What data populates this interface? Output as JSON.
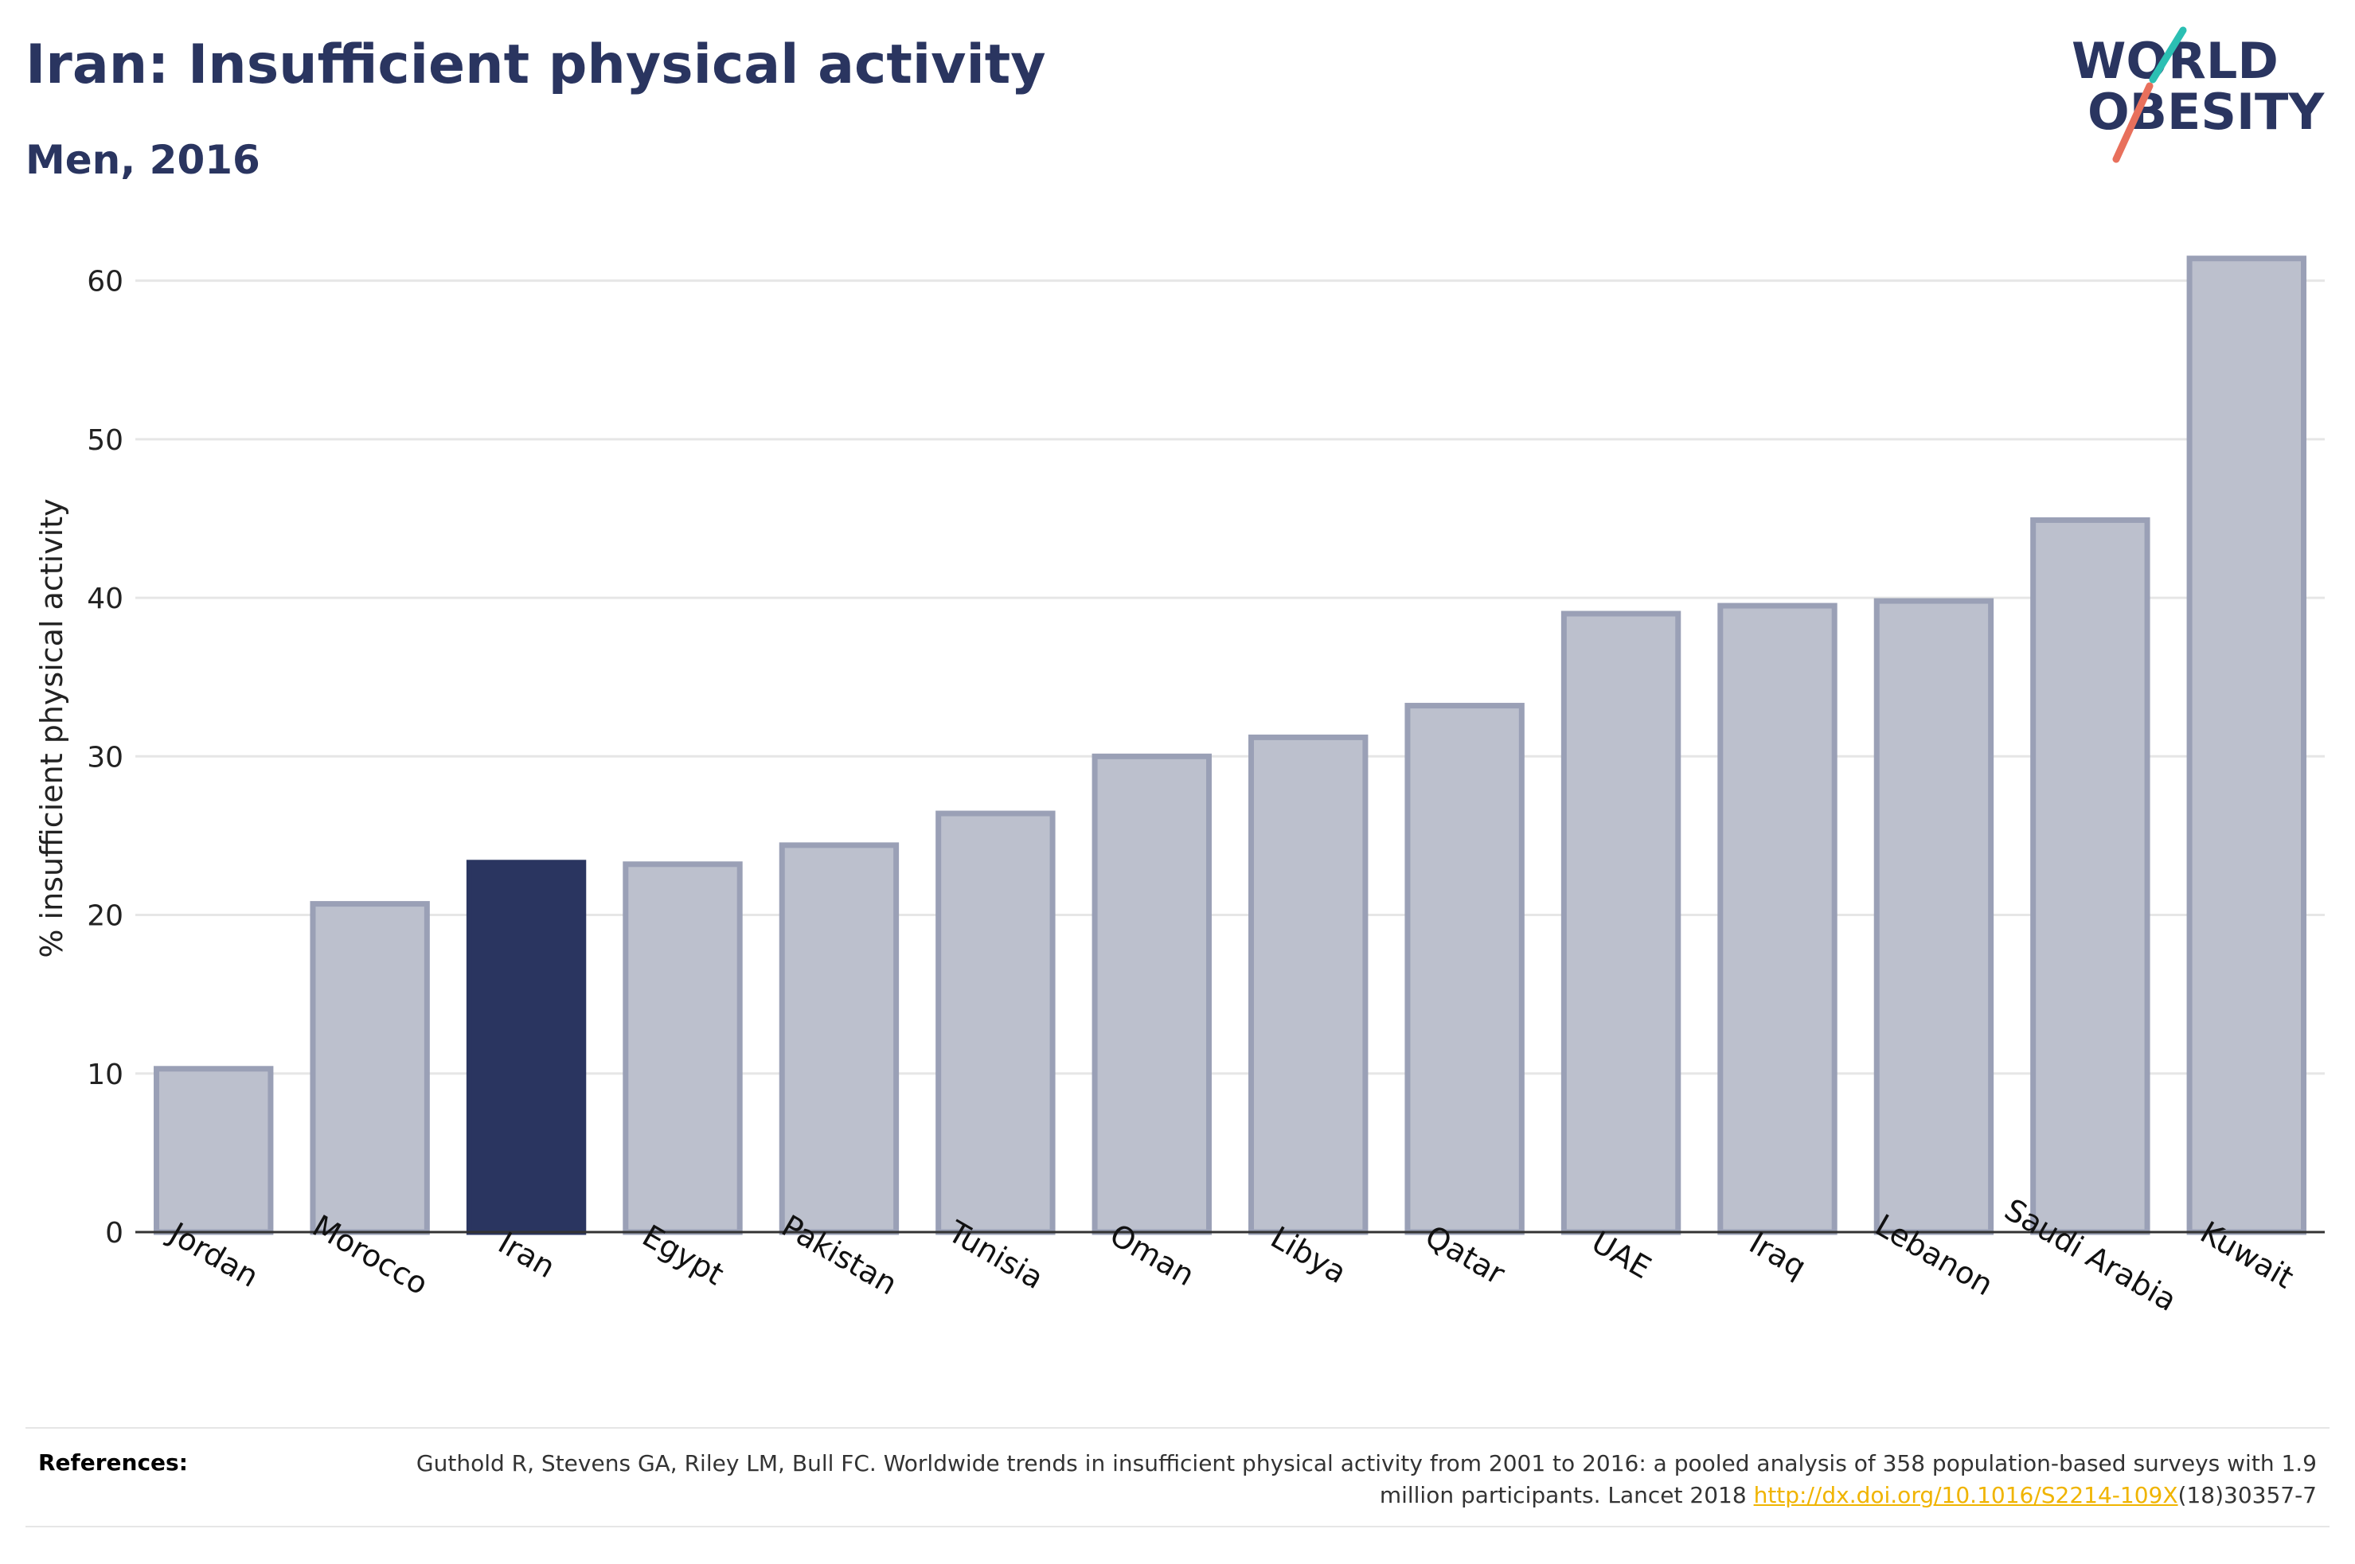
{
  "header": {
    "title": "Iran: Insufficient physical activity",
    "subtitle": "Men, 2016"
  },
  "logo": {
    "line1": "WORLD",
    "line2": "OBESITY"
  },
  "chart_data": {
    "type": "bar",
    "title": "Iran: Insufficient physical activity",
    "subtitle": "Men, 2016",
    "xlabel": "",
    "ylabel": "% insufficient physical activity",
    "ylim": [
      0,
      65
    ],
    "yticks": [
      0,
      10,
      20,
      30,
      40,
      50,
      60
    ],
    "grid": true,
    "categories": [
      "Jordan",
      "Morocco",
      "Iran",
      "Egypt",
      "Pakistan",
      "Tunisia",
      "Oman",
      "Libya",
      "Qatar",
      "UAE",
      "Iraq",
      "Lebanon",
      "Saudi Arabia",
      "Kuwait"
    ],
    "values": [
      10.3,
      20.7,
      23.3,
      23.2,
      24.4,
      26.4,
      30.0,
      31.2,
      33.2,
      39.0,
      39.5,
      39.8,
      44.9,
      61.4
    ],
    "highlight": "Iran",
    "colors": {
      "bar": "#bcc0cd",
      "bar_border": "#9aa0b6",
      "highlight": "#2a3560",
      "grid": "#e6e6e6",
      "axis": "#333333"
    }
  },
  "references": {
    "label": "References:",
    "text_before_link": "Guthold R, Stevens GA, Riley LM, Bull FC. Worldwide trends in insufficient physical activity from 2001 to 2016: a pooled analysis of 358 population-based surveys with 1.9 million participants. Lancet 2018 ",
    "link_text": "http://dx.doi.org/10.1016/S2214-109X",
    "text_after_link": "(18)30357-7"
  }
}
